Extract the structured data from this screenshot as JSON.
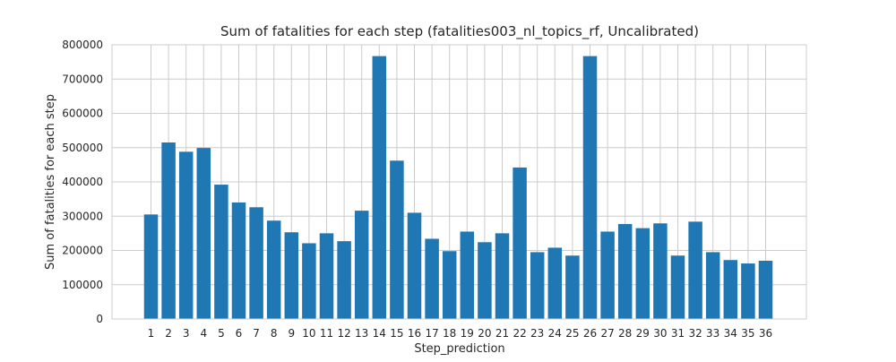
{
  "chart_data": {
    "type": "bar",
    "title": "Sum of fatalities for each step (fatalities003_nl_topics_rf, Uncalibrated)",
    "xlabel": "Step_prediction",
    "ylabel": "Sum of fatalities for each step",
    "categories": [
      "1",
      "2",
      "3",
      "4",
      "5",
      "6",
      "7",
      "8",
      "9",
      "10",
      "11",
      "12",
      "13",
      "14",
      "15",
      "16",
      "17",
      "18",
      "19",
      "20",
      "21",
      "22",
      "23",
      "24",
      "25",
      "26",
      "27",
      "28",
      "29",
      "30",
      "31",
      "32",
      "33",
      "34",
      "35",
      "36"
    ],
    "values": [
      305000,
      515000,
      488000,
      499000,
      392000,
      340000,
      326000,
      287000,
      253000,
      221000,
      250000,
      227000,
      316000,
      767000,
      462000,
      310000,
      234000,
      198000,
      255000,
      224000,
      250000,
      442000,
      195000,
      208000,
      185000,
      767000,
      255000,
      277000,
      265000,
      279000,
      185000,
      284000,
      195000,
      172000,
      162000,
      170000
    ],
    "ylim": [
      0,
      800000
    ],
    "yticks": [
      "0",
      "100000",
      "200000",
      "300000",
      "400000",
      "500000",
      "600000",
      "700000",
      "800000"
    ],
    "ytick_values": [
      0,
      100000,
      200000,
      300000,
      400000,
      500000,
      600000,
      700000,
      800000
    ],
    "grid": true,
    "bar_color": "#1f77b4",
    "grid_color": "#cccccc"
  }
}
